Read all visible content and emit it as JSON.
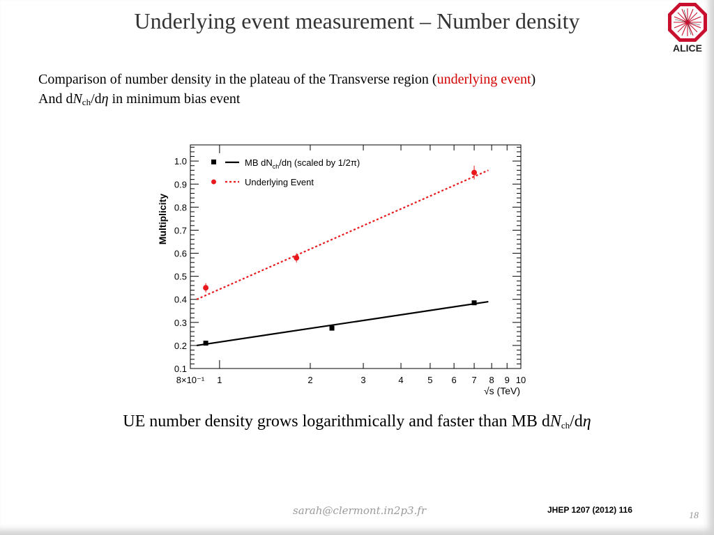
{
  "slide": {
    "title": "Underlying event measurement  – Number density",
    "line1_prefix": "Comparison of number density in the plateau of the Transverse region (",
    "line1_highlight": "underlying event",
    "line1_suffix": ")",
    "line2_prefix": "And d",
    "line2_N": "N",
    "line2_sub": "ch",
    "line2_mid": "/d",
    "line2_eta": "η",
    "line2_suffix": " in minimum bias event",
    "caption_text": "UE number density grows logarithmically and faster than MB d",
    "caption_N": "N",
    "caption_sub": "ch",
    "caption_mid": "/d",
    "caption_eta": "η",
    "footer_email": "sarah@clermont.in2p3.fr",
    "footer_ref": "JHEP 1207 (2012) 116",
    "page_number": "18",
    "logo_text": "ALICE",
    "colors": {
      "accent_red": "#d40000",
      "title": "#333333",
      "logo_red": "#c8102e"
    }
  },
  "chart_data": {
    "type": "scatter",
    "x_scale": "log",
    "xlim": [
      0.8,
      10
    ],
    "ylim": [
      0.1,
      1.07
    ],
    "ylabel": "Multiplicity",
    "xlabel": "√s (TeV)",
    "x_ticks": [
      {
        "v": 0.8,
        "label": "8×10⁻¹"
      },
      {
        "v": 1,
        "label": "1"
      },
      {
        "v": 2,
        "label": "2"
      },
      {
        "v": 3,
        "label": "3"
      },
      {
        "v": 4,
        "label": "4"
      },
      {
        "v": 5,
        "label": "5"
      },
      {
        "v": 6,
        "label": "6"
      },
      {
        "v": 7,
        "label": "7"
      },
      {
        "v": 8,
        "label": "8"
      },
      {
        "v": 9,
        "label": "9"
      },
      {
        "v": 10,
        "label": "10"
      }
    ],
    "y_ticks": [
      {
        "v": 0.1,
        "label": "0.1"
      },
      {
        "v": 0.2,
        "label": "0.2"
      },
      {
        "v": 0.3,
        "label": "0.3"
      },
      {
        "v": 0.4,
        "label": "0.4"
      },
      {
        "v": 0.5,
        "label": "0.5"
      },
      {
        "v": 0.6,
        "label": "0.6"
      },
      {
        "v": 0.7,
        "label": "0.7"
      },
      {
        "v": 0.8,
        "label": "0.8"
      },
      {
        "v": 0.9,
        "label": "0.9"
      },
      {
        "v": 1.0,
        "label": "1.0"
      }
    ],
    "legend_position": "top-left",
    "series": [
      {
        "name": "MB dNch/dη (scaled by 1/2π)",
        "legend_parts": [
          "MB dN",
          "ch",
          "/dη (scaled by 1/2π)"
        ],
        "color": "#000000",
        "marker": "square",
        "line_style": "solid",
        "points": [
          {
            "x": 0.9,
            "y": 0.21,
            "err": 0.0
          },
          {
            "x": 2.36,
            "y": 0.275,
            "err": 0.0
          },
          {
            "x": 7.0,
            "y": 0.385,
            "err": 0.0
          }
        ],
        "fit": [
          [
            0.84,
            0.2
          ],
          [
            7.8,
            0.39
          ]
        ]
      },
      {
        "name": "Underlying Event",
        "color": "#e8181c",
        "marker": "circle",
        "line_style": "dotted",
        "points": [
          {
            "x": 0.9,
            "y": 0.45,
            "err": 0.02
          },
          {
            "x": 1.8,
            "y": 0.58,
            "err": 0.02
          },
          {
            "x": 7.0,
            "y": 0.95,
            "err": 0.03
          }
        ],
        "fit": [
          [
            0.84,
            0.4
          ],
          [
            7.8,
            0.96
          ]
        ]
      }
    ]
  }
}
